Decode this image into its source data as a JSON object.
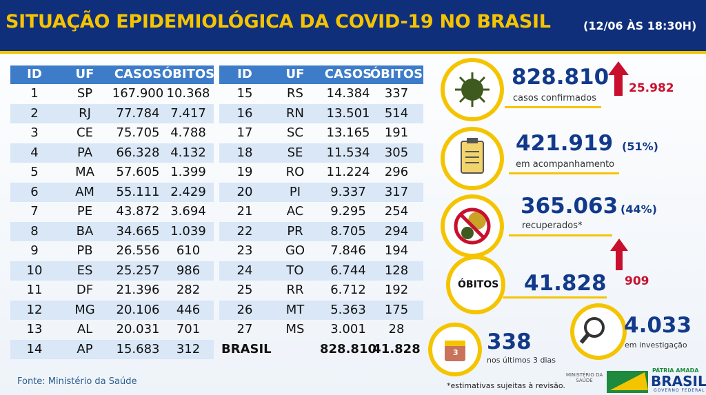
{
  "header": {
    "title": "SITUAÇÃO EPIDEMIOLÓGICA DA COVID-19 NO BRASIL",
    "subtitle": "(12/06 ÀS 18:30H)"
  },
  "table": {
    "columns": [
      "ID",
      "UF",
      "CASOS",
      "ÓBITOS"
    ],
    "rows": [
      [
        "1",
        "SP",
        "167.900",
        "10.368"
      ],
      [
        "2",
        "RJ",
        "77.784",
        "7.417"
      ],
      [
        "3",
        "CE",
        "75.705",
        "4.788"
      ],
      [
        "4",
        "PA",
        "66.328",
        "4.132"
      ],
      [
        "5",
        "MA",
        "57.605",
        "1.399"
      ],
      [
        "6",
        "AM",
        "55.111",
        "2.429"
      ],
      [
        "7",
        "PE",
        "43.872",
        "3.694"
      ],
      [
        "8",
        "BA",
        "34.665",
        "1.039"
      ],
      [
        "9",
        "PB",
        "26.556",
        "610"
      ],
      [
        "10",
        "ES",
        "25.257",
        "986"
      ],
      [
        "11",
        "DF",
        "21.396",
        "282"
      ],
      [
        "12",
        "MG",
        "20.106",
        "446"
      ],
      [
        "13",
        "AL",
        "20.031",
        "701"
      ],
      [
        "14",
        "AP",
        "15.683",
        "312"
      ],
      [
        "15",
        "RS",
        "14.384",
        "337"
      ],
      [
        "16",
        "RN",
        "13.501",
        "514"
      ],
      [
        "17",
        "SC",
        "13.165",
        "191"
      ],
      [
        "18",
        "SE",
        "11.534",
        "305"
      ],
      [
        "19",
        "RO",
        "11.224",
        "296"
      ],
      [
        "20",
        "PI",
        "9.337",
        "317"
      ],
      [
        "21",
        "AC",
        "9.295",
        "254"
      ],
      [
        "22",
        "PR",
        "8.705",
        "294"
      ],
      [
        "23",
        "GO",
        "7.846",
        "194"
      ],
      [
        "24",
        "TO",
        "6.744",
        "128"
      ],
      [
        "25",
        "RR",
        "6.712",
        "192"
      ],
      [
        "26",
        "MT",
        "5.363",
        "175"
      ],
      [
        "27",
        "MS",
        "3.001",
        "28"
      ]
    ],
    "total": [
      "BRASIL",
      "828.810",
      "41.828"
    ]
  },
  "stats": {
    "confirmed": {
      "value": "828.810",
      "label": "casos confirmados",
      "change": "25.982"
    },
    "monitoring": {
      "value": "421.919",
      "share": "(51%)",
      "label": "em acompanhamento"
    },
    "recovered": {
      "value": "365.063",
      "share": "(44%)",
      "label": "recuperados*"
    },
    "deaths": {
      "label": "ÓBITOS",
      "value": "41.828",
      "change": "909"
    },
    "investigation": {
      "value": "4.033",
      "label": "em investigação"
    },
    "recent": {
      "icon": "3",
      "value": "338",
      "label": "nos últimos 3 dias"
    }
  },
  "footer": {
    "source": "Fonte: Ministério da Saúde",
    "note": "*estimativas sujeitas à revisão.",
    "ministry": "MINISTÉRIO DA SAÚDE",
    "slogan": "PÁTRIA AMADA",
    "brand": "BRASIL",
    "government": "GOVERNO FEDERAL"
  }
}
